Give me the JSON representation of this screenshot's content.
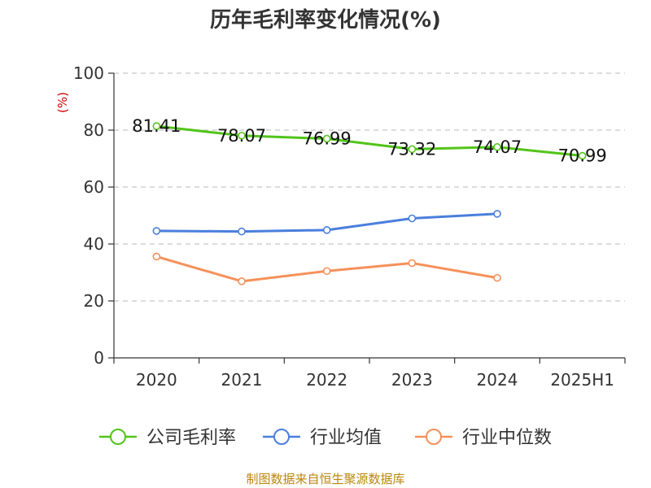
{
  "chart_data": {
    "type": "line",
    "title": "历年毛利率变化情况(%)",
    "ylabel": "(%)",
    "xlabel": "",
    "categories": [
      "2020",
      "2021",
      "2022",
      "2023",
      "2024",
      "2025H1"
    ],
    "ylim": [
      0,
      100
    ],
    "yticks": [
      0,
      20,
      40,
      60,
      80,
      100
    ],
    "grid": true,
    "legend_position": "bottom",
    "series": [
      {
        "name": "公司毛利率",
        "color": "#52c41a",
        "values": [
          81.41,
          78.07,
          76.99,
          73.32,
          74.07,
          70.99
        ],
        "labels": [
          "81.41",
          "78.07",
          "76.99",
          "73.32",
          "74.07",
          "70.99"
        ]
      },
      {
        "name": "行业均值",
        "color": "#4a7fdc",
        "values": [
          44.6,
          44.4,
          44.9,
          49.0,
          50.6,
          null
        ]
      },
      {
        "name": "行业中位数",
        "color": "#f5915a",
        "values": [
          35.6,
          26.9,
          30.5,
          33.3,
          28.1,
          null
        ]
      }
    ]
  },
  "source_note": "制图数据来自恒生聚源数据库"
}
